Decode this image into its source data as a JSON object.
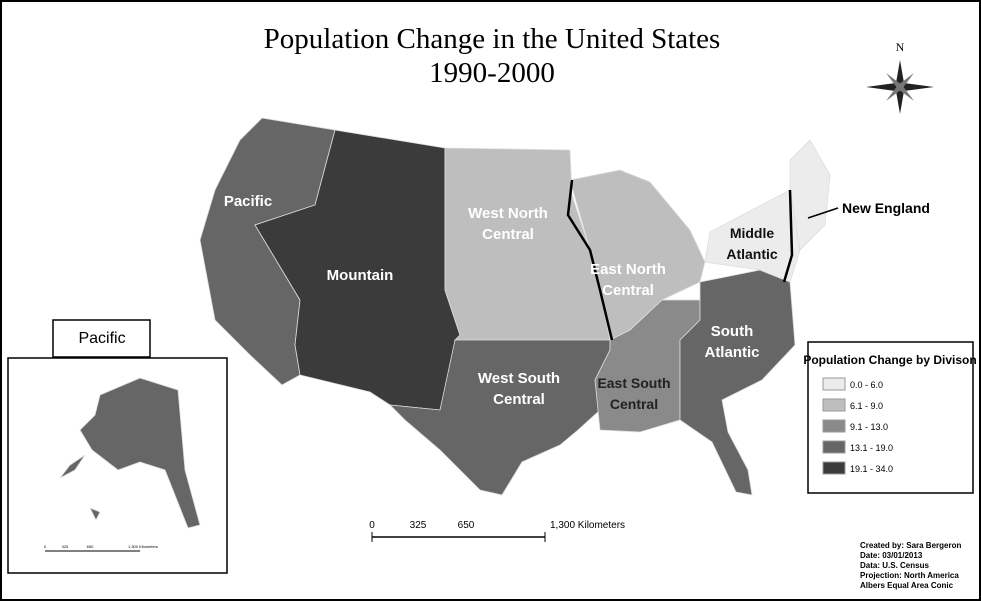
{
  "title": [
    "Population Change in the United States",
    "1990-2000"
  ],
  "compass": "N",
  "regions": [
    {
      "lines": [
        "Pacific"
      ]
    },
    {
      "lines": [
        "Mountain"
      ]
    },
    {
      "lines": [
        "West North",
        "Central"
      ]
    },
    {
      "lines": [
        "West South",
        "Central"
      ]
    },
    {
      "lines": [
        "East North",
        "Central"
      ]
    },
    {
      "lines": [
        "East South",
        "Central"
      ]
    },
    {
      "lines": [
        "South",
        "Atlantic"
      ]
    },
    {
      "lines": [
        "Middle",
        "Atlantic"
      ]
    },
    {
      "lines": [
        "New England"
      ]
    }
  ],
  "legend": {
    "title": "Population Change by Divison",
    "items": [
      {
        "label": "0.0 - 6.0",
        "color": "#ececec"
      },
      {
        "label": "6.1 - 9.0",
        "color": "#bebebe"
      },
      {
        "label": "9.1 - 13.0",
        "color": "#8a8a8a"
      },
      {
        "label": "13.1 - 19.0",
        "color": "#666666"
      },
      {
        "label": "19.1 - 34.0",
        "color": "#3b3b3b"
      }
    ]
  },
  "scale_bar": [
    "0",
    "325",
    "650",
    "1,300 Kilometers"
  ],
  "inset": {
    "title": "Pacific",
    "scale_bar": [
      "0",
      "325",
      "650",
      "1,300 Kilometers"
    ]
  },
  "credits": [
    "Created by: Sara Bergeron",
    "Date: 03/01/2013",
    "Data: U.S. Census",
    "Projection: North America",
    "Albers Equal Area Conic"
  ]
}
